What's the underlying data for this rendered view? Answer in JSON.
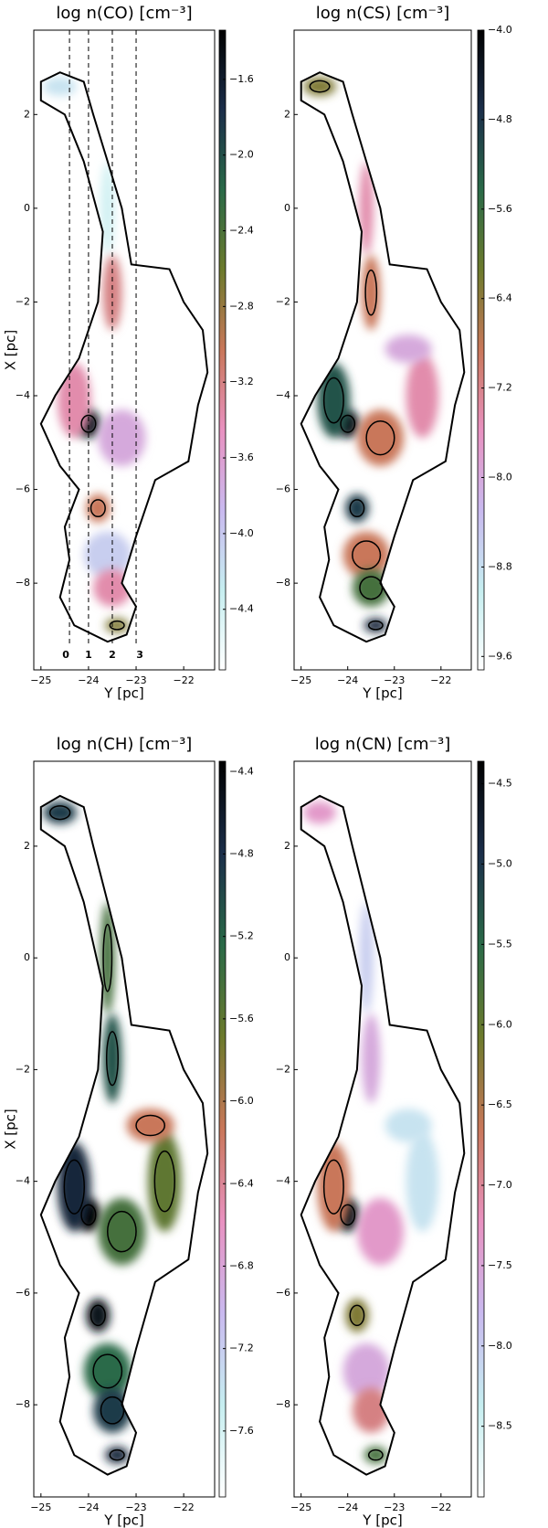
{
  "chart_data": [
    {
      "type": "heatmap",
      "title": "log n(CO) [cm⁻³]",
      "xlabel": "Y [pc]",
      "ylabel": "X [pc]",
      "xlim": [
        -25.15,
        -21.35
      ],
      "ylim": [
        -9.85,
        3.8
      ],
      "xticks": [
        {
          "value": -25,
          "label": "−25"
        },
        {
          "value": -24,
          "label": "−24"
        },
        {
          "value": -23,
          "label": "−23"
        },
        {
          "value": -22,
          "label": "−22"
        }
      ],
      "yticks": [
        2,
        0,
        {
          "value": -2,
          "label": "−2"
        },
        {
          "value": -4,
          "label": "−4"
        },
        {
          "value": -6,
          "label": "−6"
        },
        {
          "value": -8,
          "label": "−8"
        }
      ],
      "clim": [
        -4.72,
        -1.34
      ],
      "cticks": [
        {
          "value": -1.6,
          "label": "−1.6"
        },
        {
          "value": -2.0,
          "label": "−2.0"
        },
        {
          "value": -2.4,
          "label": "−2.4"
        },
        {
          "value": -2.8,
          "label": "−2.8"
        },
        {
          "value": -3.2,
          "label": "−3.2"
        },
        {
          "value": -3.6,
          "label": "−3.6"
        },
        {
          "value": -4.0,
          "label": "−4.0"
        },
        {
          "value": -4.4,
          "label": "−4.4"
        }
      ],
      "colormap": [
        "#ffffff",
        "#c6eef0",
        "#c9b9ef",
        "#e891c0",
        "#c9775a",
        "#6c7a2c",
        "#2a6a48",
        "#1b2e4a",
        "#000000"
      ],
      "cuts": [
        {
          "value": -24.4,
          "label": "0"
        },
        {
          "value": -24.0,
          "label": "1"
        },
        {
          "value": -23.5,
          "label": "2"
        },
        {
          "value": -23.0,
          "label": "3"
        }
      ]
    },
    {
      "type": "heatmap",
      "title": "log n(CS) [cm⁻³]",
      "xlabel": "Y [pc]",
      "xlim": [
        -25.15,
        -21.35
      ],
      "ylim": [
        -9.85,
        3.8
      ],
      "xticks": [
        {
          "value": -25,
          "label": "−25"
        },
        {
          "value": -24,
          "label": "−24"
        },
        {
          "value": -23,
          "label": "−23"
        },
        {
          "value": -22,
          "label": "−22"
        }
      ],
      "yticks": [
        2,
        0,
        {
          "value": -2,
          "label": "−2"
        },
        {
          "value": -4,
          "label": "−4"
        },
        {
          "value": -6,
          "label": "−6"
        },
        {
          "value": -8,
          "label": "−8"
        }
      ],
      "clim": [
        -9.72,
        -4.0
      ],
      "cticks": [
        {
          "value": -4.0,
          "label": "−4.0"
        },
        {
          "value": -4.8,
          "label": "−4.8"
        },
        {
          "value": -5.6,
          "label": "−5.6"
        },
        {
          "value": -6.4,
          "label": "−6.4"
        },
        {
          "value": -7.2,
          "label": "−7.2"
        },
        {
          "value": -8.0,
          "label": "−8.0"
        },
        {
          "value": -8.8,
          "label": "−8.8"
        },
        {
          "value": -9.6,
          "label": "−9.6"
        }
      ],
      "colormap": [
        "#ffffff",
        "#c6eef0",
        "#c9b9ef",
        "#e891c0",
        "#c9775a",
        "#6c7a2c",
        "#2a6a48",
        "#1b2e4a",
        "#000000"
      ]
    },
    {
      "type": "heatmap",
      "title": "log n(CH) [cm⁻³]",
      "xlabel": "Y [pc]",
      "ylabel": "X [pc]",
      "xlim": [
        -25.15,
        -21.35
      ],
      "ylim": [
        -9.65,
        3.52
      ],
      "xticks": [
        {
          "value": -25,
          "label": "−25"
        },
        {
          "value": -24,
          "label": "−24"
        },
        {
          "value": -23,
          "label": "−23"
        },
        {
          "value": -22,
          "label": "−22"
        }
      ],
      "yticks": [
        2,
        0,
        {
          "value": -2,
          "label": "−2"
        },
        {
          "value": -4,
          "label": "−4"
        },
        {
          "value": -6,
          "label": "−6"
        },
        {
          "value": -8,
          "label": "−8"
        }
      ],
      "clim": [
        -7.92,
        -4.35
      ],
      "cticks": [
        {
          "value": -4.4,
          "label": "−4.4"
        },
        {
          "value": -4.8,
          "label": "−4.8"
        },
        {
          "value": -5.2,
          "label": "−5.2"
        },
        {
          "value": -5.6,
          "label": "−5.6"
        },
        {
          "value": -6.0,
          "label": "−6.0"
        },
        {
          "value": -6.4,
          "label": "−6.4"
        },
        {
          "value": -6.8,
          "label": "−6.8"
        },
        {
          "value": -7.2,
          "label": "−7.2"
        },
        {
          "value": -7.6,
          "label": "−7.6"
        }
      ],
      "colormap": [
        "#ffffff",
        "#c6eef0",
        "#c9b9ef",
        "#e891c0",
        "#c9775a",
        "#6c7a2c",
        "#2a6a48",
        "#1b2e4a",
        "#000000"
      ]
    },
    {
      "type": "heatmap",
      "title": "log n(CN) [cm⁻³]",
      "xlabel": "Y [pc]",
      "xlim": [
        -25.15,
        -21.35
      ],
      "ylim": [
        -9.65,
        3.52
      ],
      "xticks": [
        {
          "value": -25,
          "label": "−25"
        },
        {
          "value": -24,
          "label": "−24"
        },
        {
          "value": -23,
          "label": "−23"
        },
        {
          "value": -22,
          "label": "−22"
        }
      ],
      "yticks": [
        2,
        0,
        {
          "value": -2,
          "label": "−2"
        },
        {
          "value": -4,
          "label": "−4"
        },
        {
          "value": -6,
          "label": "−6"
        },
        {
          "value": -8,
          "label": "−8"
        }
      ],
      "clim": [
        -8.94,
        -4.36
      ],
      "cticks": [
        {
          "value": -4.5,
          "label": "−4.5"
        },
        {
          "value": -5.0,
          "label": "−5.0"
        },
        {
          "value": -5.5,
          "label": "−5.5"
        },
        {
          "value": -6.0,
          "label": "−6.0"
        },
        {
          "value": -6.5,
          "label": "−6.5"
        },
        {
          "value": -7.0,
          "label": "−7.0"
        },
        {
          "value": -7.5,
          "label": "−7.5"
        },
        {
          "value": -8.0,
          "label": "−8.0"
        },
        {
          "value": -8.5,
          "label": "−8.5"
        }
      ],
      "colormap": [
        "#ffffff",
        "#c6eef0",
        "#c9b9ef",
        "#e891c0",
        "#c9775a",
        "#6c7a2c",
        "#2a6a48",
        "#1b2e4a",
        "#000000"
      ]
    }
  ]
}
